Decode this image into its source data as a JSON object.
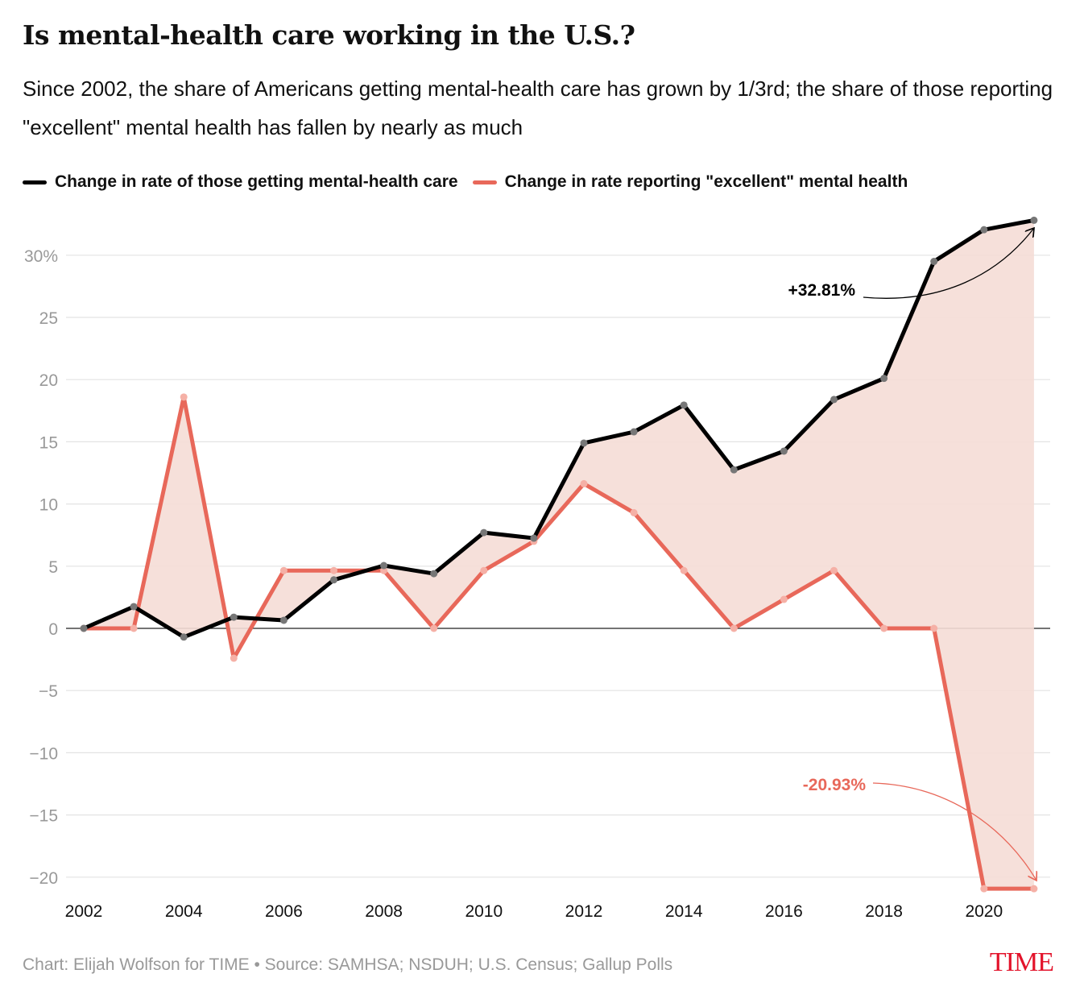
{
  "chart_data": {
    "type": "line",
    "title": "Is mental-health care working in the U.S.?",
    "subtitle": "Since 2002, the share of Americans getting mental-health care has grown by 1/3rd; the share of those reporting \"excellent\" mental health has fallen by nearly as much",
    "x": [
      2002,
      2003,
      2004,
      2005,
      2006,
      2007,
      2008,
      2009,
      2010,
      2011,
      2012,
      2013,
      2014,
      2015,
      2016,
      2017,
      2018,
      2019,
      2020,
      2021
    ],
    "series": [
      {
        "name": "Change in rate of those getting mental-health care",
        "color": "#000000",
        "values": [
          0,
          1.75,
          -0.7,
          0.9,
          0.65,
          3.9,
          5.05,
          4.4,
          7.7,
          7.25,
          14.9,
          15.8,
          17.95,
          12.75,
          14.25,
          18.4,
          20.1,
          29.5,
          32.05,
          32.81
        ]
      },
      {
        "name": "Change in rate reporting \"excellent\" mental health",
        "color": "#e8685a",
        "values": [
          0,
          0,
          18.6,
          -2.4,
          4.65,
          4.65,
          4.65,
          0,
          4.65,
          7.0,
          11.63,
          9.3,
          4.65,
          0,
          2.33,
          4.65,
          0,
          0,
          -20.93,
          -20.93
        ]
      }
    ],
    "ylim": [
      -22,
      33
    ],
    "yticks": [
      -20,
      -15,
      -10,
      -5,
      0,
      5,
      10,
      15,
      20,
      25,
      30
    ],
    "ytick_labels": [
      "−20",
      "−15",
      "−10",
      "−5",
      "0",
      "5",
      "10",
      "15",
      "20",
      "25",
      "30%"
    ],
    "xticks": [
      2002,
      2004,
      2006,
      2008,
      2010,
      2012,
      2014,
      2016,
      2018,
      2020
    ],
    "xtick_labels": [
      "2002",
      "2004",
      "2006",
      "2008",
      "2010",
      "2012",
      "2014",
      "2016",
      "2018",
      "2020"
    ],
    "annotations": [
      {
        "text": "+32.81%",
        "x": 2021,
        "y": 32.81,
        "color": "#000000"
      },
      {
        "text": "-20.93%",
        "x": 2021,
        "y": -20.93,
        "color": "#e8685a"
      }
    ],
    "grid": true,
    "legend_position": "top-left",
    "fill_color": "#f5ddd6"
  },
  "footer": "Chart: Elijah Wolfson for TIME • Source: SAMHSA; NSDUH; U.S. Census; Gallup Polls",
  "logo": "TIME"
}
